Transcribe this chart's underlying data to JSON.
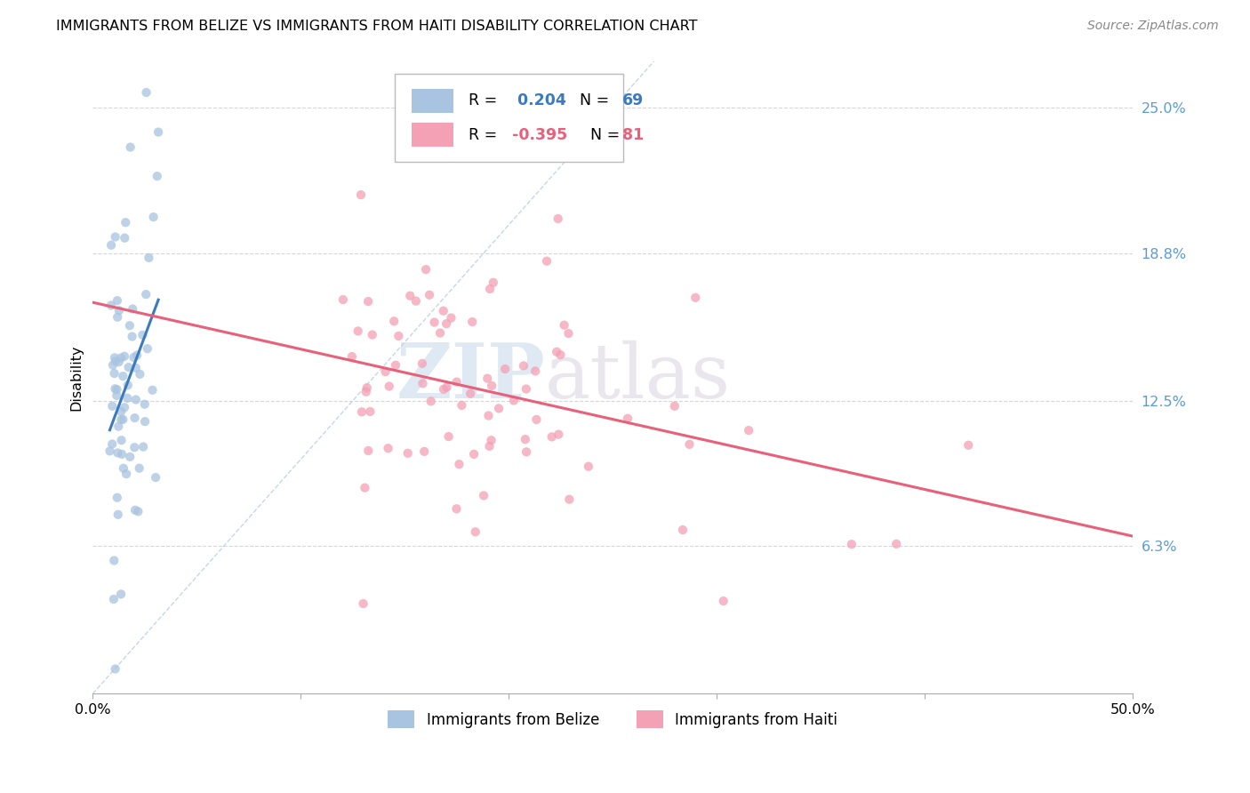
{
  "title": "IMMIGRANTS FROM BELIZE VS IMMIGRANTS FROM HAITI DISABILITY CORRELATION CHART",
  "source": "Source: ZipAtlas.com",
  "ylabel": "Disability",
  "ytick_labels": [
    "25.0%",
    "18.8%",
    "12.5%",
    "6.3%"
  ],
  "ytick_values": [
    0.25,
    0.188,
    0.125,
    0.063
  ],
  "xlim": [
    0.0,
    0.5
  ],
  "ylim": [
    0.0,
    0.27
  ],
  "belize_R": 0.204,
  "belize_N": 69,
  "haiti_R": -0.395,
  "haiti_N": 81,
  "belize_color": "#a8c4e0",
  "haiti_color": "#f4a0b5",
  "belize_line_color": "#3a7abf",
  "haiti_line_color": "#e8607a",
  "diag_line_color": "#b8cce4",
  "watermark_zip": "ZIP",
  "watermark_atlas": "atlas",
  "watermark_color_zip": "#c5d8ea",
  "watermark_color_atlas": "#d0c8d8",
  "legend_belize_text": "R =  0.204   N = 69",
  "legend_haiti_text": "R = -0.395   N = 81",
  "belize_r_color": "#3a7abf",
  "belize_n_color": "#3a7abf",
  "haiti_r_color": "#e8607a",
  "haiti_n_color": "#e8607a",
  "ytick_color": "#5b9bd5",
  "bottom_legend_belize": "Immigrants from Belize",
  "bottom_legend_haiti": "Immigrants from Haiti"
}
